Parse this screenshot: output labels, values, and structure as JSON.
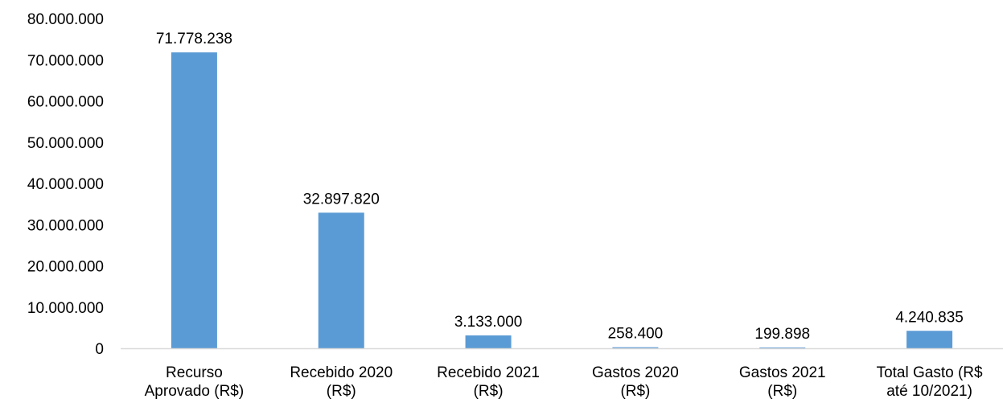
{
  "chart_data": {
    "type": "bar",
    "categories": [
      [
        "Recurso",
        "Aprovado (R$)"
      ],
      [
        "Recebido 2020",
        "(R$)"
      ],
      [
        "Recebido 2021",
        "(R$)"
      ],
      [
        "Gastos 2020",
        "(R$)"
      ],
      [
        "Gastos 2021",
        "(R$)"
      ],
      [
        "Total Gasto (R$",
        "até 10/2021)"
      ]
    ],
    "values": [
      71778238,
      32897820,
      3133000,
      258400,
      199898,
      4240835
    ],
    "value_labels": [
      "71.778.238",
      "32.897.820",
      "3.133.000",
      "258.400",
      "199.898",
      "4.240.835"
    ],
    "yticks": [
      0,
      10000000,
      20000000,
      30000000,
      40000000,
      50000000,
      60000000,
      70000000,
      80000000
    ],
    "ytick_labels": [
      "0",
      "10.000.000",
      "20.000.000",
      "30.000.000",
      "40.000.000",
      "50.000.000",
      "60.000.000",
      "70.000.000",
      "80.000.000"
    ],
    "ylim": [
      0,
      80000000
    ],
    "bar_color": "#5B9BD5",
    "axis_color": "#D9D9D9",
    "grid": false,
    "legend": "none"
  }
}
